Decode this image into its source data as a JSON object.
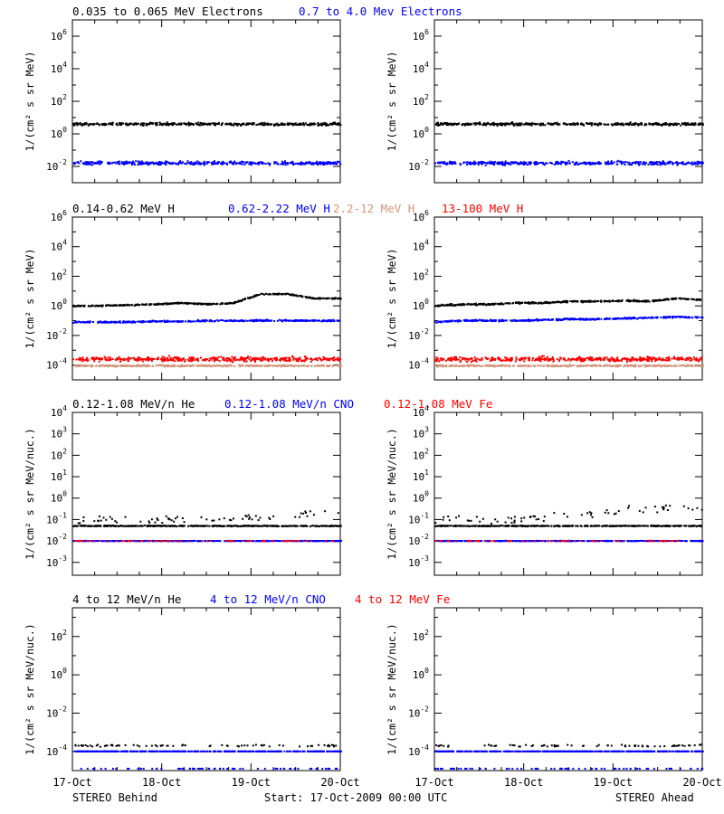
{
  "footer": {
    "left": "STEREO Behind",
    "center": "Start: 17-Oct-2009 00:00 UTC",
    "right": "STEREO Ahead"
  },
  "x_ticks": [
    "17-Oct",
    "18-Oct",
    "19-Oct",
    "20-Oct"
  ],
  "colors": {
    "black": "#000000",
    "blue": "#0000ff",
    "red": "#ff0000",
    "salmon": "#d2967d"
  },
  "chart_data": [
    {
      "type": "scatter",
      "row": 1,
      "legend": [
        {
          "label": "0.035 to 0.065 MeV Electrons",
          "color": "black"
        },
        {
          "label": "0.7 to 4.0 Mev Electrons",
          "color": "blue"
        }
      ],
      "ylabel": "1/(cm² s sr MeV)",
      "y_log_range": [
        -3,
        7
      ],
      "y_tick_exponents": [
        -2,
        0,
        2,
        4,
        6
      ],
      "panels": [
        {
          "name": "STEREO Behind",
          "series": [
            {
              "color": "black",
              "log_values": [
                0.6,
                0.6,
                0.6,
                0.6,
                0.6,
                0.6,
                0.6,
                0.6,
                0.6,
                0.6,
                0.6
              ],
              "scatter": 0.08
            },
            {
              "color": "blue",
              "log_values": [
                -1.8,
                -1.8,
                -1.8,
                -1.8,
                -1.8,
                -1.8,
                -1.8,
                -1.8,
                -1.8,
                -1.8,
                -1.8
              ],
              "scatter": 0.1
            }
          ]
        },
        {
          "name": "STEREO Ahead",
          "series": [
            {
              "color": "black",
              "log_values": [
                0.6,
                0.6,
                0.6,
                0.6,
                0.6,
                0.6,
                0.6,
                0.6,
                0.6,
                0.6,
                0.6
              ],
              "scatter": 0.08
            },
            {
              "color": "blue",
              "log_values": [
                -1.8,
                -1.8,
                -1.8,
                -1.8,
                -1.8,
                -1.8,
                -1.8,
                -1.8,
                -1.8,
                -1.8,
                -1.8
              ],
              "scatter": 0.1
            }
          ]
        }
      ]
    },
    {
      "type": "scatter",
      "row": 2,
      "legend": [
        {
          "label": "0.14-0.62 MeV H",
          "color": "black"
        },
        {
          "label": "0.62-2.22 MeV H",
          "color": "blue"
        },
        {
          "label": "2.2-12 MeV H",
          "color": "salmon"
        },
        {
          "label": "13-100 MeV H",
          "color": "red"
        }
      ],
      "ylabel": "1/(cm² s sr MeV)",
      "y_log_range": [
        -5,
        6
      ],
      "y_tick_exponents": [
        -4,
        -2,
        0,
        2,
        4,
        6
      ],
      "panels": [
        {
          "name": "STEREO Behind",
          "series": [
            {
              "color": "black",
              "log_values": [
                0.0,
                0.0,
                0.05,
                0.1,
                0.2,
                0.1,
                0.2,
                0.8,
                0.8,
                0.5,
                0.5
              ],
              "scatter": 0.04
            },
            {
              "color": "blue",
              "log_values": [
                -1.1,
                -1.1,
                -1.1,
                -1.05,
                -1.05,
                -1.0,
                -1.0,
                -1.0,
                -1.0,
                -1.0,
                -1.0
              ],
              "scatter": 0.05
            },
            {
              "color": "red",
              "log_values": [
                -3.6,
                -3.6,
                -3.6,
                -3.6,
                -3.6,
                -3.6,
                -3.6,
                -3.6,
                -3.6,
                -3.6,
                -3.6
              ],
              "scatter": 0.15
            },
            {
              "color": "salmon",
              "log_values": [
                -4.05,
                -4.05,
                -4.05,
                -4.05,
                -4.05,
                -4.05,
                -4.05,
                -4.05,
                -4.05,
                -4.05,
                -4.05
              ],
              "scatter": 0.05
            }
          ]
        },
        {
          "name": "STEREO Ahead",
          "series": [
            {
              "color": "black",
              "log_values": [
                0.0,
                0.1,
                0.1,
                0.2,
                0.2,
                0.3,
                0.3,
                0.35,
                0.3,
                0.5,
                0.4
              ],
              "scatter": 0.05
            },
            {
              "color": "blue",
              "log_values": [
                -1.1,
                -1.0,
                -1.0,
                -1.0,
                -0.95,
                -0.9,
                -0.9,
                -0.85,
                -0.8,
                -0.75,
                -0.8
              ],
              "scatter": 0.05
            },
            {
              "color": "red",
              "log_values": [
                -3.6,
                -3.6,
                -3.6,
                -3.6,
                -3.6,
                -3.6,
                -3.6,
                -3.6,
                -3.6,
                -3.6,
                -3.6
              ],
              "scatter": 0.15
            },
            {
              "color": "salmon",
              "log_values": [
                -4.05,
                -4.05,
                -4.05,
                -4.05,
                -4.05,
                -4.05,
                -4.05,
                -4.05,
                -4.05,
                -4.05,
                -4.05
              ],
              "scatter": 0.05
            }
          ]
        }
      ]
    },
    {
      "type": "scatter",
      "row": 3,
      "legend": [
        {
          "label": "0.12-1.08 MeV/n He",
          "color": "black"
        },
        {
          "label": "0.12-1.08 MeV/n CNO",
          "color": "blue"
        },
        {
          "label": "0.12-1.08 MeV Fe",
          "color": "red"
        }
      ],
      "ylabel": "1/(cm² s sr MeV/nuc.)",
      "y_log_range": [
        -3.6,
        4
      ],
      "y_tick_exponents": [
        -3,
        -2,
        -1,
        0,
        1,
        2,
        3,
        4
      ],
      "panels": [
        {
          "name": "STEREO Behind",
          "series": [
            {
              "color": "black",
              "log_values": [
                -1.3,
                -1.3,
                -1.3,
                -1.3,
                -1.3,
                -1.3,
                -1.3,
                -1.3,
                -1.3,
                -1.3,
                -1.3
              ],
              "scatter": 0.02
            },
            {
              "color": "black",
              "log_values": [
                -1.0,
                -1.0,
                -1.0,
                -1.0,
                -1.0,
                -1.0,
                -1.0,
                -0.9,
                -0.8,
                -0.7,
                -0.6
              ],
              "scatter": 0.15,
              "sparse": true
            },
            {
              "color": "blue",
              "log_values": [
                -2.0,
                -2.0,
                -2.0,
                -2.0,
                -2.0,
                -2.0,
                -2.0,
                -2.0,
                -2.0,
                -2.0,
                -2.0
              ],
              "scatter": 0.01
            },
            {
              "color": "red",
              "log_values": [
                -2.0,
                -2.0,
                -2.0,
                -2.0,
                -2.0,
                -2.0,
                -2.0,
                -2.0,
                -2.0,
                -2.0,
                -2.0
              ],
              "scatter": 0.01,
              "sparse": true
            }
          ]
        },
        {
          "name": "STEREO Ahead",
          "series": [
            {
              "color": "black",
              "log_values": [
                -1.3,
                -1.3,
                -1.3,
                -1.3,
                -1.3,
                -1.3,
                -1.3,
                -1.3,
                -1.3,
                -1.3,
                -1.3
              ],
              "scatter": 0.02
            },
            {
              "color": "black",
              "log_values": [
                -1.0,
                -1.0,
                -1.0,
                -1.0,
                -0.9,
                -0.8,
                -0.7,
                -0.6,
                -0.5,
                -0.4,
                -0.5
              ],
              "scatter": 0.2,
              "sparse": true
            },
            {
              "color": "blue",
              "log_values": [
                -2.0,
                -2.0,
                -2.0,
                -2.0,
                -2.0,
                -2.0,
                -2.0,
                -2.0,
                -2.0,
                -2.0,
                -2.0
              ],
              "scatter": 0.01
            },
            {
              "color": "red",
              "log_values": [
                -2.0,
                -2.0,
                -2.0,
                -2.0,
                -2.0,
                -2.0,
                -2.0,
                -2.0,
                -2.0,
                -2.0,
                -2.0
              ],
              "scatter": 0.01,
              "sparse": true
            }
          ]
        }
      ]
    },
    {
      "type": "scatter",
      "row": 4,
      "legend": [
        {
          "label": "4 to 12 MeV/n He",
          "color": "black"
        },
        {
          "label": "4 to 12 MeV/n CNO",
          "color": "blue"
        },
        {
          "label": "4 to 12 MeV Fe",
          "color": "red"
        }
      ],
      "ylabel": "1/(cm² s sr MeV/nuc.)",
      "y_log_range": [
        -5,
        3.5
      ],
      "y_tick_exponents": [
        -4,
        -2,
        0,
        2
      ],
      "panels": [
        {
          "name": "STEREO Behind",
          "series": [
            {
              "color": "blue",
              "log_values": [
                -4.0,
                -4.0,
                -4.0,
                -4.0,
                -4.0,
                -4.0,
                -4.0,
                -4.0,
                -4.0,
                -4.0,
                -4.0
              ],
              "scatter": 0.0
            },
            {
              "color": "black",
              "log_values": [
                -3.7,
                -3.7,
                -3.7,
                -3.7,
                -3.7,
                -3.7,
                -3.7,
                -3.7,
                -3.7,
                -3.7,
                -3.7
              ],
              "scatter": 0.05,
              "sparse": true
            },
            {
              "color": "blue",
              "log_values": [
                -4.9,
                -4.9,
                -4.9,
                -4.9,
                -4.9,
                -4.9,
                -4.9,
                -4.9,
                -4.9,
                -4.9,
                -4.9
              ],
              "scatter": 0.0,
              "sparse": true
            }
          ]
        },
        {
          "name": "STEREO Ahead",
          "series": [
            {
              "color": "blue",
              "log_values": [
                -4.0,
                -4.0,
                -4.0,
                -4.0,
                -4.0,
                -4.0,
                -4.0,
                -4.0,
                -4.0,
                -4.0,
                -4.0
              ],
              "scatter": 0.0
            },
            {
              "color": "black",
              "log_values": [
                -3.7,
                -3.7,
                -3.7,
                -3.7,
                -3.7,
                -3.7,
                -3.7,
                -3.7,
                -3.7,
                -3.7,
                -3.7
              ],
              "scatter": 0.05,
              "sparse": true
            },
            {
              "color": "blue",
              "log_values": [
                -4.9,
                -4.9,
                -4.9,
                -4.9,
                -4.9,
                -4.9,
                -4.9,
                -4.9,
                -4.9,
                -4.9,
                -4.9
              ],
              "scatter": 0.0,
              "sparse": true
            }
          ]
        }
      ]
    }
  ]
}
